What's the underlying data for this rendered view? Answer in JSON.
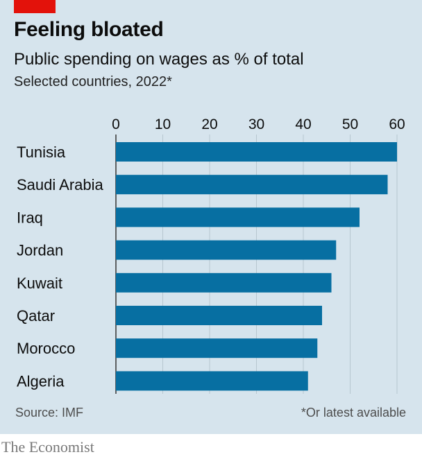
{
  "header": {
    "title": "Feeling bloated",
    "subtitle": "Public spending on wages as % of total",
    "note": "Selected countries, 2022*"
  },
  "footer": {
    "source": "Source: IMF",
    "footnote": "*Or latest available",
    "brand": "The Economist"
  },
  "colors": {
    "panel_background": "#d6e4ed",
    "bar": "#076fa2",
    "gridline": "#b7c6cf",
    "accent_red": "#e3120b"
  },
  "chart_data": {
    "type": "bar",
    "orientation": "horizontal",
    "title": "Feeling bloated",
    "subtitle": "Public spending on wages as % of total",
    "xlabel": "",
    "ylabel": "",
    "xlim": [
      0,
      60
    ],
    "xticks": [
      0,
      10,
      20,
      30,
      40,
      50,
      60
    ],
    "x_axis_position": "top",
    "grid": "vertical",
    "categories": [
      "Tunisia",
      "Saudi Arabia",
      "Iraq",
      "Jordan",
      "Kuwait",
      "Qatar",
      "Morocco",
      "Algeria"
    ],
    "values": [
      60,
      58,
      52,
      47,
      46,
      44,
      43,
      41
    ]
  }
}
